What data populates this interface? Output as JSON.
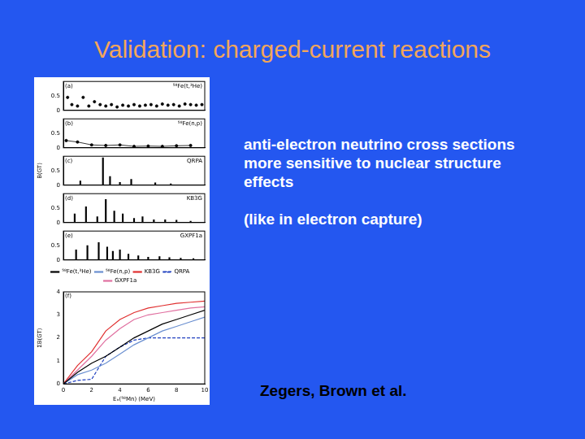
{
  "slide": {
    "title": "Validation: charged-current reactions",
    "paragraphs": [
      "anti-electron neutrino cross sections more sensitive to nuclear structure effects",
      "(like in electron capture)"
    ],
    "credit": "Zegers, Brown et al."
  },
  "chart_data": [
    {
      "type": "scatter",
      "annotations": [
        "(a)"
      ],
      "title": "⁵⁸Fe(t,³He)",
      "x": [
        0.3,
        0.6,
        1.0,
        1.4,
        1.8,
        2.2,
        2.6,
        3.0,
        3.4,
        3.8,
        4.2,
        4.6,
        5.0,
        5.4,
        5.8,
        6.2,
        6.6,
        7.0,
        7.4,
        7.8,
        8.2,
        8.6,
        9.0,
        9.4,
        9.8
      ],
      "values": [
        0.45,
        0.2,
        0.15,
        0.45,
        0.15,
        0.3,
        0.2,
        0.15,
        0.2,
        0.12,
        0.18,
        0.15,
        0.2,
        0.15,
        0.18,
        0.2,
        0.15,
        0.22,
        0.18,
        0.2,
        0.15,
        0.22,
        0.2,
        0.18,
        0.2
      ],
      "color": "#000000",
      "marker": "circle",
      "line_style": "none",
      "xlim": [
        0,
        10
      ],
      "xticks": [
        0,
        2,
        4,
        6,
        8,
        10
      ],
      "ylim": [
        0,
        1
      ],
      "yticks": [
        0,
        0.5
      ],
      "grid": false,
      "tick_labels": "y"
    },
    {
      "type": "scatter",
      "annotations": [
        "(b)"
      ],
      "title": "⁵⁸Fe(n,p)",
      "x": [
        0.2,
        1.0,
        2.0,
        3.0,
        4.0,
        5.0,
        6.0,
        7.0,
        8.0,
        9.0
      ],
      "values": [
        0.25,
        0.2,
        0.1,
        0.08,
        0.1,
        0.05,
        0.06,
        0.05,
        0.07,
        0.08
      ],
      "color": "#000000",
      "marker": "circle",
      "line_style": "solid",
      "xlim": [
        0,
        10
      ],
      "xticks": [
        0,
        2,
        4,
        6,
        8,
        10
      ],
      "ylim": [
        0,
        1
      ],
      "yticks": [
        0,
        0.5
      ],
      "grid": false,
      "tick_labels": "y"
    },
    {
      "type": "bar",
      "annotations": [
        "(c)"
      ],
      "title": "QRPA",
      "ylabel": "B(GT)",
      "x": [
        1.2,
        2.8,
        3.3,
        4.0,
        4.8,
        6.5,
        7.6
      ],
      "values": [
        0.15,
        0.95,
        0.3,
        0.1,
        0.2,
        0.08,
        0.05
      ],
      "color": "#000000",
      "xlim": [
        0,
        10
      ],
      "xticks": [
        0,
        2,
        4,
        6,
        8,
        10
      ],
      "ylim": [
        0,
        1
      ],
      "yticks": [
        0,
        0.5
      ],
      "grid": false,
      "tick_labels": "y"
    },
    {
      "type": "bar",
      "annotations": [
        "(d)"
      ],
      "title": "KB3G",
      "x": [
        0.8,
        1.6,
        2.4,
        3.0,
        3.6,
        4.2,
        5.0,
        5.6,
        6.4,
        7.2,
        8.0,
        9.0
      ],
      "values": [
        0.3,
        0.55,
        0.2,
        0.8,
        0.4,
        0.3,
        0.15,
        0.2,
        0.1,
        0.1,
        0.08,
        0.05
      ],
      "color": "#000000",
      "xlim": [
        0,
        10
      ],
      "xticks": [
        0,
        2,
        4,
        6,
        8,
        10
      ],
      "ylim": [
        0,
        1
      ],
      "yticks": [
        0,
        0.5
      ],
      "grid": false,
      "tick_labels": "y"
    },
    {
      "type": "bar",
      "annotations": [
        "(e)"
      ],
      "title": "GXPF1a",
      "x": [
        0.9,
        1.7,
        2.5,
        3.1,
        3.5,
        4.0,
        4.6,
        5.3,
        6.0,
        6.8,
        7.5,
        8.3,
        9.2
      ],
      "values": [
        0.35,
        0.5,
        0.6,
        0.45,
        0.3,
        0.35,
        0.2,
        0.15,
        0.1,
        0.12,
        0.08,
        0.06,
        0.05
      ],
      "color": "#000000",
      "xlim": [
        0,
        10
      ],
      "xticks": [
        0,
        2,
        4,
        6,
        8,
        10
      ],
      "ylim": [
        0,
        1
      ],
      "yticks": [
        0,
        0.5
      ],
      "grid": false,
      "tick_labels": "y"
    },
    {
      "type": "line",
      "annotations": [
        "(f)"
      ],
      "ylabel": "ΣB(GT)",
      "xlabel": "Eₓ(⁵⁸Mn) (MeV)",
      "x": [
        0,
        1,
        2,
        3,
        4,
        5,
        6,
        7,
        8,
        9,
        10
      ],
      "series": [
        {
          "name": "⁵⁸Fe(t,³He)",
          "color": "#000000",
          "line_style": "solid",
          "values": [
            0,
            0.5,
            0.9,
            1.2,
            1.6,
            2.0,
            2.3,
            2.6,
            2.8,
            3.0,
            3.2
          ]
        },
        {
          "name": "⁵⁸Fe(n,p)",
          "color": "#6a8fd0",
          "line_style": "solid",
          "values": [
            0,
            0.4,
            0.6,
            0.9,
            1.3,
            1.7,
            2.0,
            2.3,
            2.5,
            2.7,
            2.9
          ]
        },
        {
          "name": "KB3G",
          "color": "#e03030",
          "line_style": "solid",
          "values": [
            0,
            0.8,
            1.4,
            2.3,
            2.8,
            3.1,
            3.3,
            3.4,
            3.5,
            3.55,
            3.6
          ]
        },
        {
          "name": "QRPA",
          "color": "#2040c0",
          "line_style": "dashed",
          "values": [
            0,
            0.15,
            0.2,
            1.2,
            1.6,
            1.9,
            2.0,
            2.0,
            2.0,
            2.0,
            2.0
          ]
        },
        {
          "name": "GXPF1a",
          "color": "#e070a0",
          "line_style": "solid",
          "values": [
            0,
            0.6,
            1.2,
            1.9,
            2.4,
            2.8,
            3.0,
            3.1,
            3.2,
            3.3,
            3.35
          ]
        }
      ],
      "xlim": [
        0,
        10
      ],
      "xticks": [
        0,
        2,
        4,
        6,
        8,
        10
      ],
      "ylim": [
        0,
        4
      ],
      "yticks": [
        0,
        1,
        2,
        3,
        4
      ],
      "grid": false,
      "legend": "top"
    }
  ]
}
